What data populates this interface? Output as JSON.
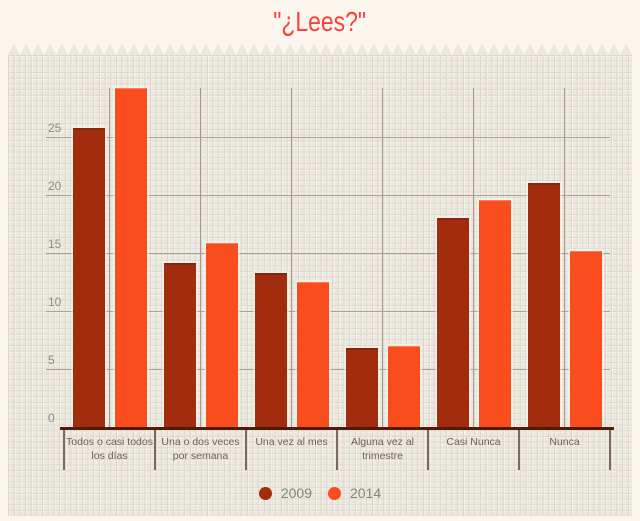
{
  "title": "\"¿Lees?\"",
  "colors": {
    "title": "#FB4136",
    "series_2009": "#A12C0E",
    "series_2014": "#F94D1D",
    "background_cream": "#FBF7EE",
    "panel_paper": "#ECE8DF",
    "axis_line": "#511B07"
  },
  "legend": {
    "items": [
      {
        "label": "2009",
        "color": "#A12C0E"
      },
      {
        "label": "2014",
        "color": "#F94D1D"
      }
    ]
  },
  "chart_data": {
    "type": "bar",
    "title": "\"¿Lees?\"",
    "categories": [
      "Todos o casi todos los días",
      "Una o dos veces por semana",
      "Una vez al mes",
      "Alguna vez al trimestre",
      "Casi Nunca",
      "Nunca"
    ],
    "series": [
      {
        "name": "2009",
        "color": "#A12C0E",
        "values": [
          25.8,
          14.1,
          13.3,
          6.8,
          18.0,
          21.0
        ]
      },
      {
        "name": "2014",
        "color": "#F94D1D",
        "values": [
          29.2,
          15.9,
          12.5,
          7.0,
          19.6,
          15.2
        ]
      }
    ],
    "xlabel": "",
    "ylabel": "",
    "ylim": [
      0,
      30
    ],
    "yticks": [
      0,
      5,
      10,
      15,
      20,
      25
    ],
    "grid": true,
    "legend_position": "bottom"
  }
}
